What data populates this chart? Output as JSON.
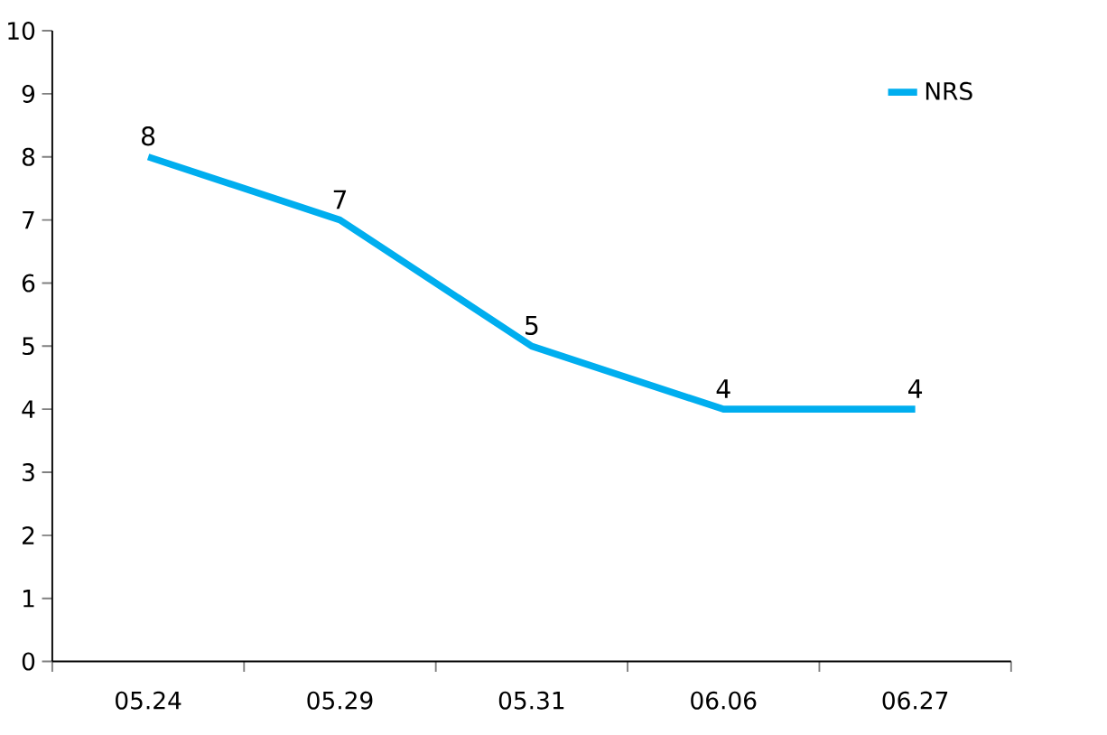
{
  "chart_data": {
    "type": "line",
    "categories": [
      "05.24",
      "05.29",
      "05.31",
      "06.06",
      "06.27"
    ],
    "series": [
      {
        "name": "NRS",
        "color": "#00aeef",
        "values": [
          8,
          7,
          5,
          4,
          4
        ]
      }
    ],
    "ylim": [
      0,
      10
    ],
    "yticks": [
      0,
      1,
      2,
      3,
      4,
      5,
      6,
      7,
      8,
      9,
      10
    ],
    "data_labels": true,
    "legend": "top right",
    "grid": false,
    "marker": "none",
    "line_style": "solid"
  }
}
